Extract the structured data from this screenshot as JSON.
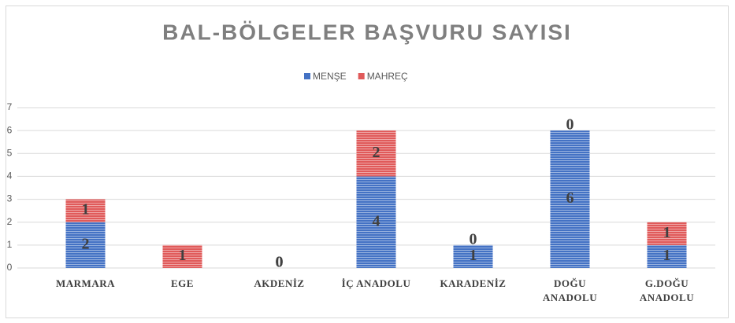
{
  "chart_data": {
    "type": "stacked_bar",
    "title": "BAL-BÖLGELER BAŞVURU SAYISI",
    "categories": [
      "MARMARA",
      "EGE",
      "AKDENİZ",
      "İÇ ANADOLU",
      "KARADENİZ",
      "DOĞU ANADOLU",
      "G.DOĞU ANADOLU"
    ],
    "series": [
      {
        "name": "MENŞE",
        "color": "#4472c4",
        "values": [
          2,
          0,
          0,
          4,
          1,
          6,
          1
        ]
      },
      {
        "name": "MAHREÇ",
        "color": "#e05a5a",
        "values": [
          1,
          1,
          0,
          2,
          0,
          0,
          1
        ]
      }
    ],
    "ylim": [
      0,
      7
    ],
    "yticks": [
      0,
      1,
      2,
      3,
      4,
      5,
      6,
      7
    ],
    "grid": true,
    "legend": "top"
  }
}
